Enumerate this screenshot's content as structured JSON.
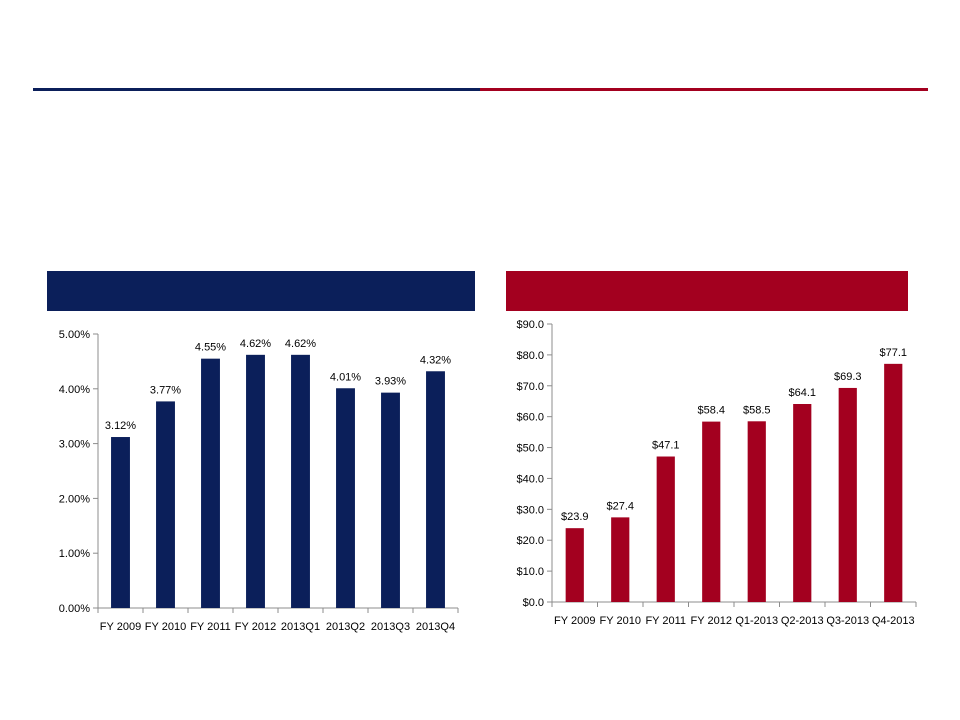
{
  "colors": {
    "navy": "#0b1f5a",
    "crimson": "#a3001f",
    "axis": "#8c8c8c"
  },
  "chart_data": [
    {
      "type": "bar",
      "categories": [
        "FY 2009",
        "FY 2010",
        "FY 2011",
        "FY 2012",
        "2013Q1",
        "2013Q2",
        "2013Q3",
        "2013Q4"
      ],
      "values": [
        3.12,
        3.77,
        4.55,
        4.62,
        4.62,
        4.01,
        3.93,
        4.32
      ],
      "data_labels": [
        "3.12%",
        "3.77%",
        "4.55%",
        "4.62%",
        "4.62%",
        "4.01%",
        "3.93%",
        "4.32%"
      ],
      "ylim": [
        0,
        5
      ],
      "yticks": [
        0,
        1,
        2,
        3,
        4,
        5
      ],
      "ytick_labels": [
        "0.00%",
        "1.00%",
        "2.00%",
        "3.00%",
        "4.00%",
        "5.00%"
      ],
      "grid": false,
      "color": "#0b1f5a"
    },
    {
      "type": "bar",
      "categories": [
        "FY 2009",
        "FY 2010",
        "FY 2011",
        "FY 2012",
        "Q1-2013",
        "Q2-2013",
        "Q3-2013",
        "Q4-2013"
      ],
      "values": [
        23.9,
        27.4,
        47.1,
        58.4,
        58.5,
        64.1,
        69.3,
        77.1
      ],
      "data_labels": [
        "$23.9",
        "$27.4",
        "$47.1",
        "$58.4",
        "$58.5",
        "$64.1",
        "$69.3",
        "$77.1"
      ],
      "ylim": [
        0,
        90
      ],
      "yticks": [
        0,
        10,
        20,
        30,
        40,
        50,
        60,
        70,
        80,
        90
      ],
      "ytick_labels": [
        "$0.0",
        "$10.0",
        "$20.0",
        "$30.0",
        "$40.0",
        "$50.0",
        "$60.0",
        "$70.0",
        "$80.0",
        "$90.0"
      ],
      "grid": false,
      "color": "#a3001f"
    }
  ]
}
